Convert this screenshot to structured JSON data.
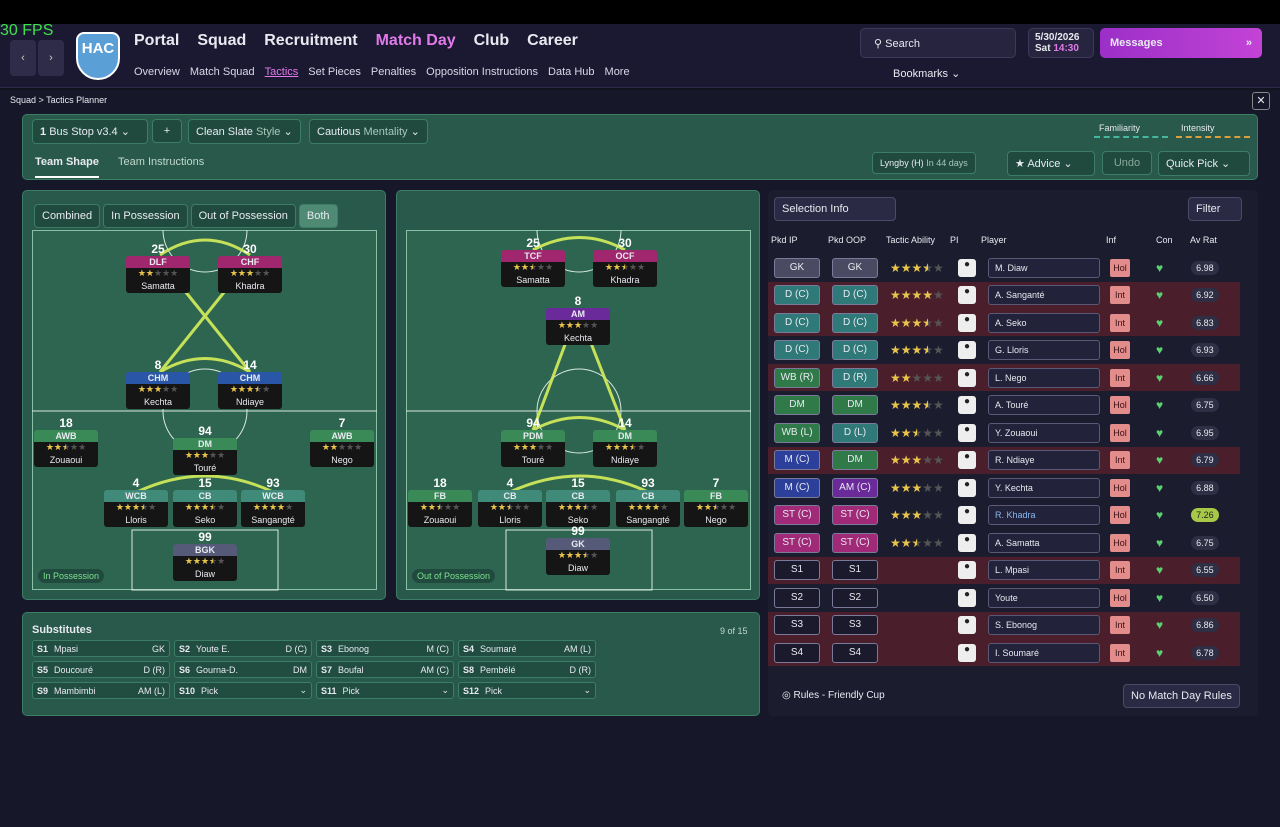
{
  "fps": "30 FPS",
  "logo": "HAC",
  "nav": {
    "main": [
      "Portal",
      "Squad",
      "Recruitment",
      "Match Day",
      "Club",
      "Career"
    ],
    "sub": [
      "Overview",
      "Match Squad",
      "Tactics",
      "Set Pieces",
      "Penalties",
      "Opposition Instructions",
      "Data Hub",
      "More"
    ]
  },
  "search": "Search",
  "date": "5/30/2026",
  "day": "Sat",
  "time": "14:30",
  "messages": "Messages",
  "bookmarks": "Bookmarks",
  "breadcrumb": [
    "Squad",
    "Tactics Planner"
  ],
  "tactic": {
    "slot": "1",
    "name": "Bus Stop v3.4",
    "style": "Clean Slate",
    "style_label": "Style",
    "mentality": "Cautious",
    "mentality_label": "Mentality",
    "familiarity": "Familiarity",
    "intensity": "Intensity"
  },
  "tabs": [
    "Team Shape",
    "Team Instructions"
  ],
  "next_match": {
    "opponent": "Lyngby (H)",
    "when": "In 44 days"
  },
  "buttons": {
    "advice": "Advice",
    "undo": "Undo",
    "quick_pick": "Quick Pick"
  },
  "view_toggles": [
    "Combined",
    "In Possession",
    "Out of Possession",
    "Both"
  ],
  "pitches": [
    {
      "label": "In Possession",
      "players": [
        {
          "number": "25",
          "role": "DLF",
          "name": "Samatta",
          "stars": 2
        },
        {
          "number": "30",
          "role": "CHF",
          "name": "Khadra",
          "stars": 3
        },
        {
          "number": "8",
          "role": "CHM",
          "name": "Kechta",
          "stars": 3
        },
        {
          "number": "14",
          "role": "CHM",
          "name": "Ndiaye",
          "stars": 3.5
        },
        {
          "number": "18",
          "role": "AWB",
          "name": "Zouaoui",
          "stars": 2.5
        },
        {
          "number": "94",
          "role": "DM",
          "name": "Touré",
          "stars": 3
        },
        {
          "number": "7",
          "role": "AWB",
          "name": "Nego",
          "stars": 2
        },
        {
          "number": "4",
          "role": "WCB",
          "name": "Lloris",
          "stars": 3.5
        },
        {
          "number": "15",
          "role": "CB",
          "name": "Seko",
          "stars": 3.5
        },
        {
          "number": "93",
          "role": "WCB",
          "name": "Sangangté",
          "stars": 4
        },
        {
          "number": "99",
          "role": "BGK",
          "name": "Diaw",
          "stars": 3.5
        }
      ]
    },
    {
      "label": "Out of Possession",
      "players": [
        {
          "number": "25",
          "role": "TCF",
          "name": "Samatta",
          "stars": 2.5
        },
        {
          "number": "30",
          "role": "OCF",
          "name": "Khadra",
          "stars": 2.5
        },
        {
          "number": "8",
          "role": "AM",
          "name": "Kechta",
          "stars": 3
        },
        {
          "number": "94",
          "role": "PDM",
          "name": "Touré",
          "stars": 3
        },
        {
          "number": "14",
          "role": "DM",
          "name": "Ndiaye",
          "stars": 3.5
        },
        {
          "number": "18",
          "role": "FB",
          "name": "Zouaoui",
          "stars": 2.5
        },
        {
          "number": "4",
          "role": "CB",
          "name": "Lloris",
          "stars": 2.5
        },
        {
          "number": "15",
          "role": "CB",
          "name": "Seko",
          "stars": 3.5
        },
        {
          "number": "93",
          "role": "CB",
          "name": "Sangangté",
          "stars": 4
        },
        {
          "number": "7",
          "role": "FB",
          "name": "Nego",
          "stars": 2.5
        },
        {
          "number": "99",
          "role": "GK",
          "name": "Diaw",
          "stars": 3.5
        }
      ]
    }
  ],
  "substitutes": {
    "title": "Substitutes",
    "count": "9 of 15",
    "slots": [
      [
        "S1",
        "Mpasi",
        "GK"
      ],
      [
        "S2",
        "Youte E.",
        "D (C)"
      ],
      [
        "S3",
        "Ebonog",
        "M (C)"
      ],
      [
        "S4",
        "Soumaré",
        "AM (L)"
      ],
      [
        "S5",
        "Doucouré",
        "D (R)"
      ],
      [
        "S6",
        "Gourna-D.",
        "DM"
      ],
      [
        "S7",
        "Boufal",
        "AM (C)"
      ],
      [
        "S8",
        "Pembélé",
        "D (R)"
      ],
      [
        "S9",
        "Mambimbi",
        "AM (L)"
      ],
      [
        "S10",
        "Pick"
      ],
      [
        "S11",
        "Pick"
      ],
      [
        "S12",
        "Pick"
      ]
    ]
  },
  "selection": {
    "title": "Selection Info",
    "filter": "Filter",
    "headers": [
      "Pkd IP",
      "Pkd OOP",
      "Tactic Ability",
      "PI",
      "Player",
      "Inf",
      "Con",
      "Av Rat"
    ],
    "rows": [
      {
        "ip": "GK",
        "oop": "GK",
        "ability": 3.5,
        "player": "M. Diaw",
        "inf": "Hol",
        "rating": "6.98"
      },
      {
        "ip": "D (C)",
        "oop": "D (C)",
        "ability": 4,
        "player": "A. Sanganté",
        "inf": "Int",
        "rating": "6.92"
      },
      {
        "ip": "D (C)",
        "oop": "D (C)",
        "ability": 3.5,
        "player": "A. Seko",
        "inf": "Int",
        "rating": "6.83"
      },
      {
        "ip": "D (C)",
        "oop": "D (C)",
        "ability": 3.5,
        "player": "G. Lloris",
        "inf": "Hol",
        "rating": "6.93"
      },
      {
        "ip": "WB (R)",
        "oop": "D (R)",
        "ability": 2,
        "player": "L. Nego",
        "inf": "Int",
        "rating": "6.66"
      },
      {
        "ip": "DM",
        "oop": "DM",
        "ability": 3.5,
        "player": "A. Touré",
        "inf": "Hol",
        "rating": "6.75"
      },
      {
        "ip": "WB (L)",
        "oop": "D (L)",
        "ability": 2.5,
        "player": "Y. Zouaoui",
        "inf": "Hol",
        "rating": "6.95"
      },
      {
        "ip": "M (C)",
        "oop": "DM",
        "ability": 3,
        "player": "R. Ndiaye",
        "inf": "Int",
        "rating": "6.79"
      },
      {
        "ip": "M (C)",
        "oop": "AM (C)",
        "ability": 3,
        "player": "Y. Kechta",
        "inf": "Hol",
        "rating": "6.88"
      },
      {
        "ip": "ST (C)",
        "oop": "ST (C)",
        "ability": 3,
        "player": "R. Khadra",
        "inf": "Hol",
        "rating": "7.26"
      },
      {
        "ip": "ST (C)",
        "oop": "ST (C)",
        "ability": 2.5,
        "player": "A. Samatta",
        "inf": "Hol",
        "rating": "6.75"
      },
      {
        "ip": "S1",
        "oop": "S1",
        "player": "L. Mpasi",
        "inf": "Int",
        "rating": "6.55"
      },
      {
        "ip": "S2",
        "oop": "S2",
        "player": "Youte",
        "inf": "Hol",
        "rating": "6.50"
      },
      {
        "ip": "S3",
        "oop": "S3",
        "player": "S. Ebonog",
        "inf": "Int",
        "rating": "6.86"
      },
      {
        "ip": "S4",
        "oop": "S4",
        "player": "I. Soumaré",
        "inf": "Int",
        "rating": "6.78"
      }
    ],
    "rules": "Rules - Friendly Cup",
    "rules_button": "No Match Day Rules"
  }
}
